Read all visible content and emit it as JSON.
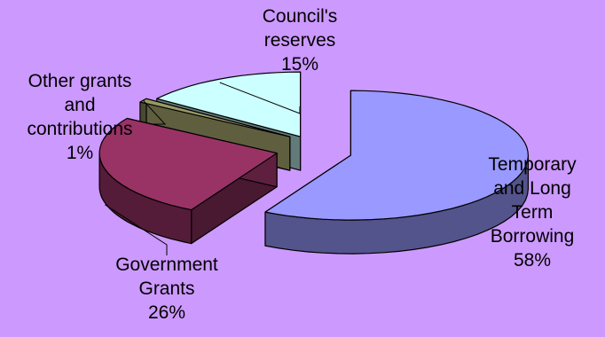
{
  "chart_data": {
    "type": "pie",
    "style": "3d-exploded",
    "legend": "none",
    "slices": [
      {
        "name": "Temporary and Long Term Borrowing",
        "value": 58,
        "label_lines": [
          "Temporary",
          "and Long",
          "Term",
          "Borrowing"
        ],
        "pct_label": "58%",
        "color": "#9999ff"
      },
      {
        "name": "Government Grants",
        "value": 26,
        "label_lines": [
          "Government",
          "Grants"
        ],
        "pct_label": "26%",
        "color": "#993366"
      },
      {
        "name": "Other grants and contributions",
        "value": 1,
        "label_lines": [
          "Other grants",
          "and",
          "contributions"
        ],
        "pct_label": "1%",
        "color": "#999966"
      },
      {
        "name": "Council's reserves",
        "value": 15,
        "label_lines": [
          "Council's",
          "reserves"
        ],
        "pct_label": "15%",
        "color": "#ccffff"
      }
    ]
  }
}
